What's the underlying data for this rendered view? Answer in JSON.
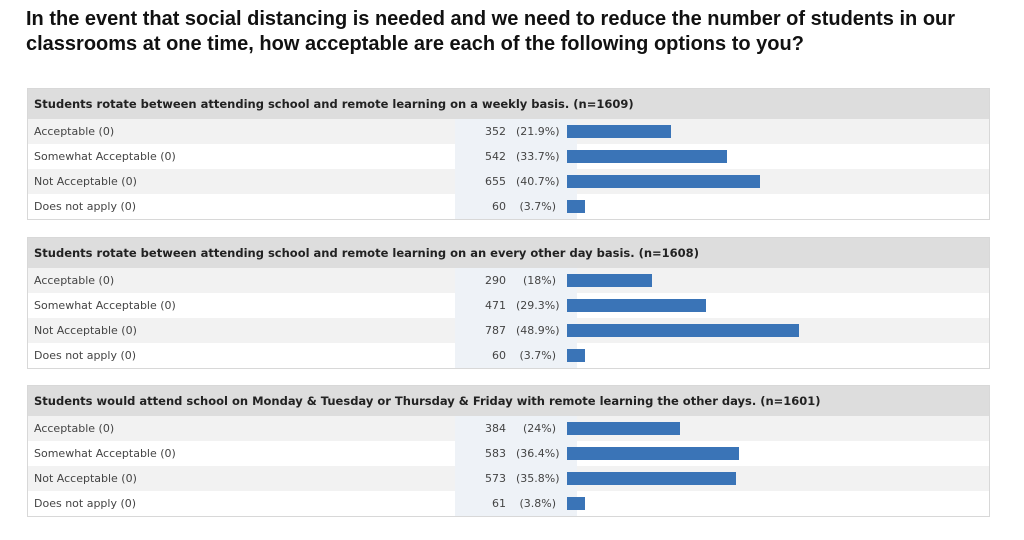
{
  "title": "In the event that social distancing is needed and we need to reduce the number of students in our classrooms at one time, how acceptable are each of the following options to you?",
  "colors": {
    "bar": "#3a74b7",
    "header_bg": "#dddddd"
  },
  "chart_data": [
    {
      "type": "bar",
      "title": "Students rotate between attending school and remote learning on a weekly basis. (n=1609)",
      "categories": [
        "Acceptable (0)",
        "Somewhat Acceptable (0)",
        "Not Acceptable (0)",
        "Does not apply (0)"
      ],
      "values": [
        352,
        542,
        655,
        60
      ],
      "percent_labels": [
        "(21.9%)",
        "(33.7%)",
        "(40.7%)",
        "(3.7%)"
      ]
    },
    {
      "type": "bar",
      "title": "Students rotate between attending school and remote learning on an every other day basis. (n=1608)",
      "categories": [
        "Acceptable (0)",
        "Somewhat Acceptable (0)",
        "Not Acceptable (0)",
        "Does not apply (0)"
      ],
      "values": [
        290,
        471,
        787,
        60
      ],
      "percent_labels": [
        "(18%)",
        "(29.3%)",
        "(48.9%)",
        "(3.7%)"
      ]
    },
    {
      "type": "bar",
      "title": "Students would attend school on Monday & Tuesday or Thursday & Friday with remote learning the other days. (n=1601)",
      "categories": [
        "Acceptable (0)",
        "Somewhat Acceptable (0)",
        "Not Acceptable (0)",
        "Does not apply (0)"
      ],
      "values": [
        384,
        583,
        573,
        61
      ],
      "percent_labels": [
        "(24%)",
        "(36.4%)",
        "(35.8%)",
        "(3.8%)"
      ]
    }
  ]
}
